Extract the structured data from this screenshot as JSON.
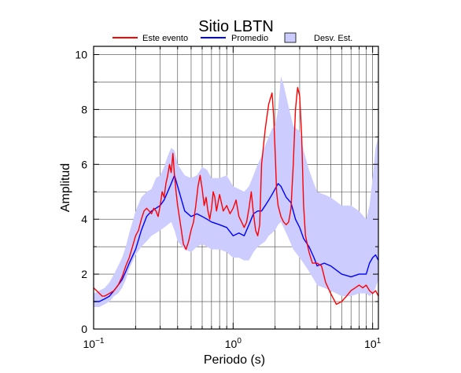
{
  "chart_data": {
    "type": "line",
    "title": "Sitio LBTN",
    "xlabel": "Periodo (s)",
    "ylabel": "Amplitud",
    "x_scale": "log",
    "xlim": [
      0.1,
      11
    ],
    "ylim": [
      0,
      10.3
    ],
    "grid": true,
    "legend_position": "top",
    "x_ticks": [
      {
        "value": 0.1,
        "base": "10",
        "exp": "−1"
      },
      {
        "value": 1,
        "base": "10",
        "exp": "0"
      },
      {
        "value": 10,
        "base": "10",
        "exp": "1"
      }
    ],
    "y_ticks": [
      0,
      2,
      4,
      6,
      8,
      10
    ],
    "legend": [
      {
        "label": "Este evento",
        "color": "#ff0000",
        "kind": "line"
      },
      {
        "label": "Promedio",
        "color": "#0000ff",
        "kind": "line"
      },
      {
        "label": "Desv. Est.",
        "color": "#ccccff",
        "kind": "box"
      }
    ],
    "band": {
      "name": "Desv. Est.",
      "color": "#ccccff",
      "points": [
        [
          0.1,
          0.8,
          1.3
        ],
        [
          0.11,
          0.8,
          1.4
        ],
        [
          0.12,
          0.9,
          1.5
        ],
        [
          0.13,
          1.0,
          1.7
        ],
        [
          0.14,
          1.2,
          2.0
        ],
        [
          0.15,
          1.3,
          2.3
        ],
        [
          0.16,
          1.5,
          2.6
        ],
        [
          0.17,
          1.8,
          3.0
        ],
        [
          0.18,
          2.2,
          3.5
        ],
        [
          0.2,
          2.7,
          4.3
        ],
        [
          0.22,
          3.0,
          4.8
        ],
        [
          0.24,
          3.2,
          5.0
        ],
        [
          0.26,
          3.4,
          5.1
        ],
        [
          0.28,
          3.5,
          5.5
        ],
        [
          0.3,
          3.6,
          5.6
        ],
        [
          0.32,
          3.7,
          5.9
        ],
        [
          0.34,
          3.8,
          6.3
        ],
        [
          0.36,
          3.9,
          6.6
        ],
        [
          0.38,
          3.6,
          6.5
        ],
        [
          0.4,
          3.2,
          6.0
        ],
        [
          0.45,
          2.9,
          5.6
        ],
        [
          0.5,
          2.8,
          5.5
        ],
        [
          0.55,
          3.0,
          5.6
        ],
        [
          0.6,
          3.1,
          5.9
        ],
        [
          0.65,
          3.0,
          5.8
        ],
        [
          0.7,
          2.9,
          5.5
        ],
        [
          0.8,
          2.9,
          5.5
        ],
        [
          0.9,
          2.8,
          5.6
        ],
        [
          1.0,
          2.6,
          5.2
        ],
        [
          1.1,
          2.6,
          5.1
        ],
        [
          1.2,
          2.5,
          5.0
        ],
        [
          1.3,
          2.5,
          5.2
        ],
        [
          1.4,
          2.8,
          5.6
        ],
        [
          1.5,
          3.0,
          6.0
        ],
        [
          1.6,
          3.1,
          6.3
        ],
        [
          1.7,
          3.2,
          6.7
        ],
        [
          1.8,
          3.4,
          7.0
        ],
        [
          1.9,
          3.5,
          7.3
        ],
        [
          2.0,
          3.6,
          7.4
        ],
        [
          2.1,
          3.8,
          8.0
        ],
        [
          2.2,
          3.9,
          9.2
        ],
        [
          2.3,
          3.7,
          8.9
        ],
        [
          2.5,
          3.3,
          8.1
        ],
        [
          2.7,
          2.9,
          7.4
        ],
        [
          3.0,
          2.6,
          7.2
        ],
        [
          3.2,
          2.4,
          6.5
        ],
        [
          3.5,
          2.1,
          5.8
        ],
        [
          3.8,
          1.8,
          5.3
        ],
        [
          4.0,
          1.6,
          5.0
        ],
        [
          4.5,
          1.5,
          4.9
        ],
        [
          5.0,
          1.4,
          4.8
        ],
        [
          6.0,
          1.2,
          4.5
        ],
        [
          7.0,
          1.2,
          4.5
        ],
        [
          8.0,
          1.3,
          4.3
        ],
        [
          9.0,
          1.3,
          4.0
        ],
        [
          9.5,
          1.2,
          4.5
        ],
        [
          10.0,
          1.3,
          5.5
        ],
        [
          10.5,
          1.5,
          6.6
        ],
        [
          11.0,
          1.8,
          7.0
        ]
      ]
    },
    "series": [
      {
        "name": "Este evento",
        "color": "#ff0000",
        "x": [
          0.1,
          0.105,
          0.11,
          0.115,
          0.12,
          0.13,
          0.14,
          0.15,
          0.16,
          0.17,
          0.18,
          0.19,
          0.2,
          0.21,
          0.22,
          0.23,
          0.24,
          0.25,
          0.26,
          0.27,
          0.28,
          0.29,
          0.3,
          0.31,
          0.32,
          0.33,
          0.34,
          0.35,
          0.36,
          0.37,
          0.38,
          0.39,
          0.4,
          0.42,
          0.44,
          0.46,
          0.48,
          0.5,
          0.52,
          0.54,
          0.56,
          0.58,
          0.6,
          0.62,
          0.64,
          0.66,
          0.68,
          0.7,
          0.72,
          0.74,
          0.76,
          0.78,
          0.8,
          0.85,
          0.9,
          0.95,
          1.0,
          1.05,
          1.1,
          1.15,
          1.2,
          1.25,
          1.3,
          1.35,
          1.4,
          1.45,
          1.5,
          1.55,
          1.6,
          1.7,
          1.8,
          1.9,
          1.95,
          2.0,
          2.05,
          2.1,
          2.2,
          2.3,
          2.4,
          2.5,
          2.6,
          2.7,
          2.8,
          2.9,
          3.0,
          3.1,
          3.2,
          3.3,
          3.5,
          3.7,
          4.0,
          4.3,
          4.6,
          5.0,
          5.5,
          6.0,
          6.5,
          7.0,
          7.5,
          8.0,
          8.5,
          9.0,
          9.5,
          10.0,
          10.5,
          11.0
        ],
        "y": [
          1.5,
          1.4,
          1.3,
          1.2,
          1.2,
          1.3,
          1.4,
          1.6,
          1.9,
          2.3,
          2.6,
          3.0,
          3.4,
          3.6,
          4.0,
          4.3,
          4.4,
          4.3,
          4.2,
          4.4,
          4.3,
          4.1,
          4.5,
          5.0,
          4.8,
          5.3,
          5.6,
          6.0,
          5.7,
          6.4,
          5.6,
          5.0,
          4.5,
          3.8,
          3.1,
          2.9,
          3.2,
          3.6,
          3.9,
          4.5,
          5.2,
          5.6,
          5.1,
          4.5,
          4.8,
          4.3,
          4.0,
          4.4,
          5.0,
          4.8,
          4.3,
          4.6,
          4.9,
          4.3,
          4.5,
          4.2,
          4.4,
          4.7,
          4.1,
          3.9,
          3.7,
          3.9,
          4.4,
          5.0,
          4.2,
          3.6,
          3.4,
          3.8,
          6.0,
          7.3,
          8.2,
          8.6,
          7.8,
          6.5,
          5.0,
          4.5,
          4.1,
          3.9,
          3.8,
          3.9,
          4.4,
          6.0,
          8.0,
          8.8,
          8.5,
          7.0,
          4.5,
          3.4,
          2.8,
          2.4,
          2.4,
          2.3,
          1.7,
          1.3,
          0.9,
          1.0,
          1.2,
          1.4,
          1.5,
          1.6,
          1.5,
          1.6,
          1.4,
          1.3,
          1.4,
          1.2
        ]
      },
      {
        "name": "Promedio",
        "color": "#0000ff",
        "x": [
          0.1,
          0.11,
          0.12,
          0.13,
          0.14,
          0.15,
          0.16,
          0.17,
          0.18,
          0.2,
          0.22,
          0.24,
          0.26,
          0.28,
          0.3,
          0.32,
          0.34,
          0.36,
          0.38,
          0.4,
          0.45,
          0.5,
          0.55,
          0.6,
          0.65,
          0.7,
          0.8,
          0.9,
          1.0,
          1.1,
          1.2,
          1.3,
          1.4,
          1.5,
          1.6,
          1.7,
          1.8,
          1.9,
          2.0,
          2.1,
          2.2,
          2.4,
          2.6,
          2.8,
          3.0,
          3.2,
          3.5,
          3.8,
          4.0,
          4.5,
          5.0,
          6.0,
          7.0,
          8.0,
          9.0,
          9.5,
          10.0,
          10.5,
          11.0
        ],
        "y": [
          1.0,
          1.0,
          1.1,
          1.2,
          1.4,
          1.6,
          1.8,
          2.1,
          2.4,
          2.9,
          3.6,
          4.1,
          4.3,
          4.4,
          4.5,
          4.7,
          5.0,
          5.3,
          5.6,
          5.2,
          4.3,
          4.1,
          4.2,
          4.1,
          4.0,
          3.9,
          3.8,
          3.7,
          3.4,
          3.5,
          3.4,
          3.8,
          4.2,
          4.3,
          4.3,
          4.5,
          4.7,
          4.9,
          5.1,
          5.3,
          5.2,
          4.8,
          4.6,
          4.0,
          3.7,
          3.3,
          3.0,
          2.6,
          2.3,
          2.4,
          2.3,
          2.0,
          1.9,
          2.0,
          2.0,
          2.4,
          2.6,
          2.7,
          2.5
        ]
      }
    ]
  }
}
